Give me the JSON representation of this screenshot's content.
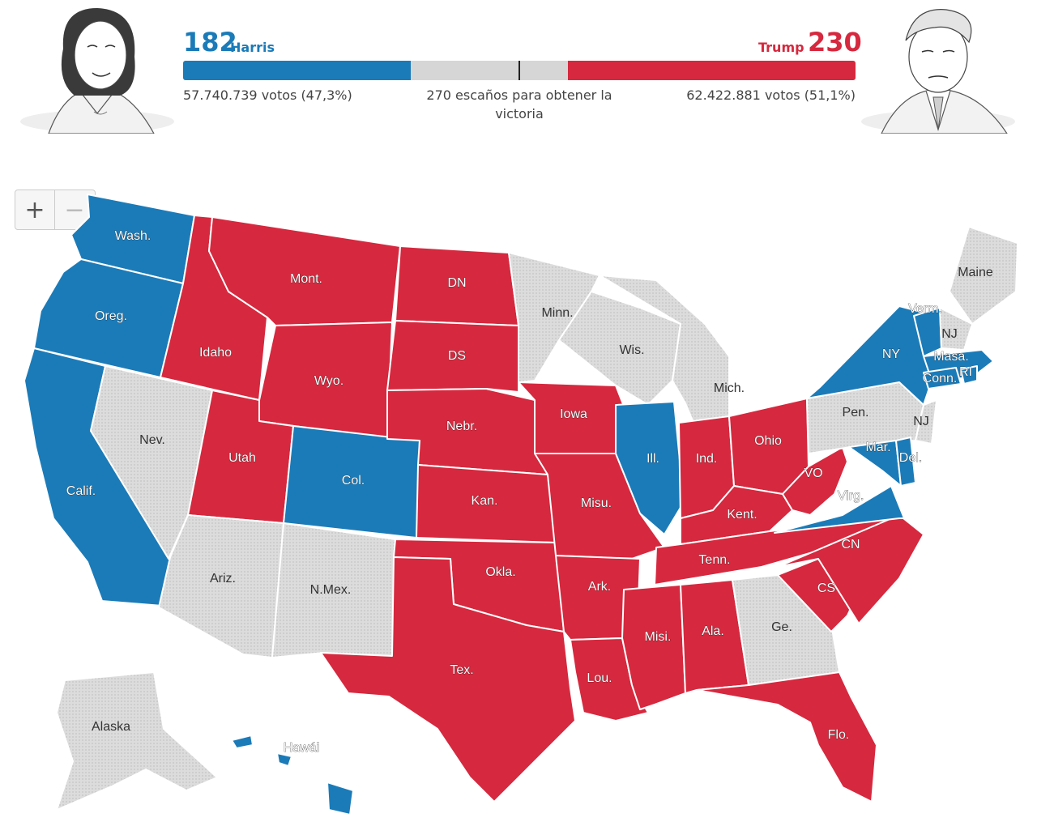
{
  "header": {
    "harris": {
      "seats": "182",
      "name": "Harris",
      "votes": "57.740.739 votos (47,3%)"
    },
    "trump": {
      "seats": "230",
      "name": "Trump",
      "votes": "62.422.881 votos (51,1%)"
    },
    "threshold": "270 escaños para obtener la victoria"
  },
  "seat_bar": {
    "total": 538,
    "dem": 182,
    "rep": 230,
    "threshold": 270
  },
  "colors": {
    "dem": "#1b7bb8",
    "rep": "#d6283e",
    "undecided": "#dcdcdc",
    "border": "#ffffff"
  },
  "zoom": {
    "in_icon": "plus-icon",
    "out_icon": "minus-icon"
  },
  "states": [
    {
      "label": "Wash.",
      "party": "dem"
    },
    {
      "label": "Oreg.",
      "party": "dem"
    },
    {
      "label": "Calif.",
      "party": "dem"
    },
    {
      "label": "Idaho",
      "party": "rep"
    },
    {
      "label": "Nev.",
      "party": "undecided"
    },
    {
      "label": "Mont.",
      "party": "rep"
    },
    {
      "label": "Wyo.",
      "party": "rep"
    },
    {
      "label": "Utah",
      "party": "rep"
    },
    {
      "label": "Ariz.",
      "party": "undecided"
    },
    {
      "label": "Col.",
      "party": "dem"
    },
    {
      "label": "N.Mex.",
      "party": "undecided"
    },
    {
      "label": "DN",
      "party": "rep"
    },
    {
      "label": "DS",
      "party": "rep"
    },
    {
      "label": "Nebr.",
      "party": "rep"
    },
    {
      "label": "Kan.",
      "party": "rep"
    },
    {
      "label": "Okla.",
      "party": "rep"
    },
    {
      "label": "Tex.",
      "party": "rep"
    },
    {
      "label": "Minn.",
      "party": "undecided"
    },
    {
      "label": "Iowa",
      "party": "rep"
    },
    {
      "label": "Misu.",
      "party": "rep"
    },
    {
      "label": "Ark.",
      "party": "rep"
    },
    {
      "label": "Lou.",
      "party": "rep"
    },
    {
      "label": "Wis.",
      "party": "undecided"
    },
    {
      "label": "Ill.",
      "party": "dem"
    },
    {
      "label": "Mich.",
      "party": "undecided"
    },
    {
      "label": "Ind.",
      "party": "rep"
    },
    {
      "label": "Ohio",
      "party": "rep"
    },
    {
      "label": "Kent.",
      "party": "rep"
    },
    {
      "label": "Tenn.",
      "party": "rep"
    },
    {
      "label": "Misi.",
      "party": "rep"
    },
    {
      "label": "Ala.",
      "party": "rep"
    },
    {
      "label": "Ge.",
      "party": "undecided"
    },
    {
      "label": "Flo.",
      "party": "rep"
    },
    {
      "label": "CS",
      "party": "rep"
    },
    {
      "label": "CN",
      "party": "rep"
    },
    {
      "label": "Virg.",
      "party": "dem"
    },
    {
      "label": "VO",
      "party": "rep"
    },
    {
      "label": "Pen.",
      "party": "undecided"
    },
    {
      "label": "NY",
      "party": "dem"
    },
    {
      "label": "Maine",
      "party": "undecided"
    },
    {
      "label": "Verm.",
      "party": "dem"
    },
    {
      "label": "NJ",
      "party": "undecided"
    },
    {
      "label": "Masa.",
      "party": "dem"
    },
    {
      "label": "Conn.",
      "party": "dem"
    },
    {
      "label": "RI",
      "party": "dem"
    },
    {
      "label": "NJ",
      "party": "undecided"
    },
    {
      "label": "Mar.",
      "party": "dem"
    },
    {
      "label": "Del.",
      "party": "dem"
    },
    {
      "label": "Alaska",
      "party": "undecided"
    },
    {
      "label": "Hawái",
      "party": "dem"
    }
  ]
}
